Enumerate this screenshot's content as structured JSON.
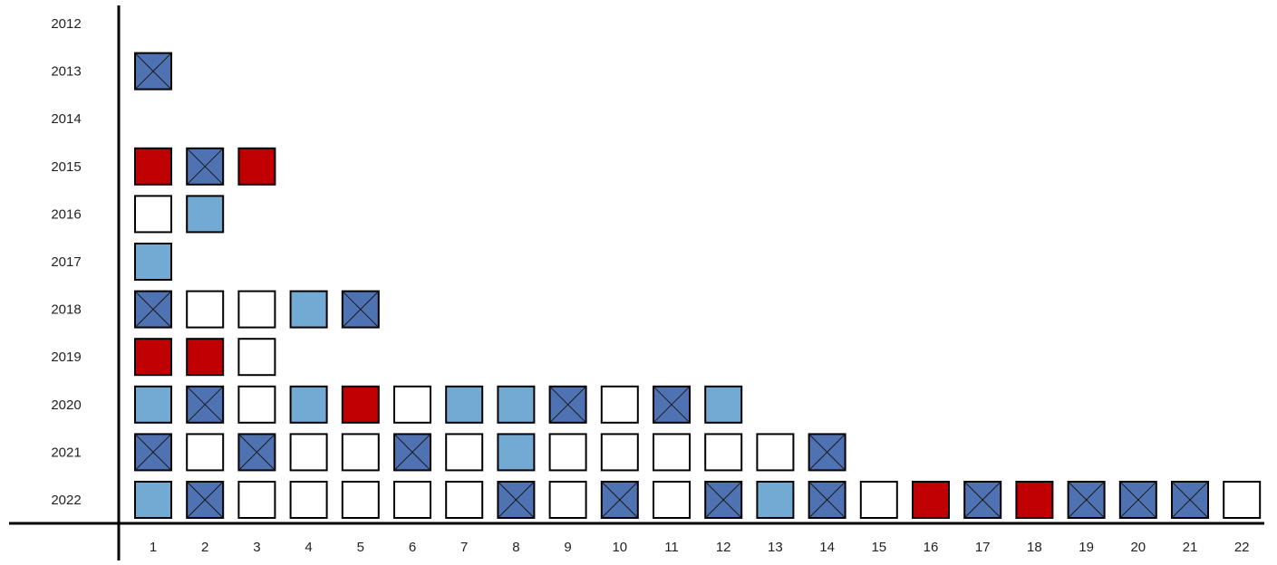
{
  "chart_data": {
    "type": "heatmap",
    "title": "",
    "xlabel": "",
    "ylabel": "",
    "x_categories": [
      "1",
      "2",
      "3",
      "4",
      "5",
      "6",
      "7",
      "8",
      "9",
      "10",
      "11",
      "12",
      "13",
      "14",
      "15",
      "16",
      "17",
      "18",
      "19",
      "20",
      "21",
      "22"
    ],
    "y_categories": [
      "2012",
      "2013",
      "2014",
      "2015",
      "2016",
      "2017",
      "2018",
      "2019",
      "2020",
      "2021",
      "2022"
    ],
    "colors": {
      "red": "#c00000",
      "light_blue": "#72aad4",
      "dark_blue_crossed": "#4f72b3",
      "white": "#ffffff",
      "border": "#000000"
    },
    "rows": [
      {
        "year": "2012",
        "cells": []
      },
      {
        "year": "2013",
        "cells": [
          "dark_blue_crossed"
        ]
      },
      {
        "year": "2014",
        "cells": []
      },
      {
        "year": "2015",
        "cells": [
          "red",
          "dark_blue_crossed",
          "red"
        ]
      },
      {
        "year": "2016",
        "cells": [
          "white",
          "light_blue"
        ]
      },
      {
        "year": "2017",
        "cells": [
          "light_blue"
        ]
      },
      {
        "year": "2018",
        "cells": [
          "dark_blue_crossed",
          "white",
          "white",
          "light_blue",
          "dark_blue_crossed"
        ]
      },
      {
        "year": "2019",
        "cells": [
          "red",
          "red",
          "white"
        ]
      },
      {
        "year": "2020",
        "cells": [
          "light_blue",
          "dark_blue_crossed",
          "white",
          "light_blue",
          "red",
          "white",
          "light_blue",
          "light_blue",
          "dark_blue_crossed",
          "white",
          "dark_blue_crossed",
          "light_blue"
        ]
      },
      {
        "year": "2021",
        "cells": [
          "dark_blue_crossed",
          "white",
          "dark_blue_crossed",
          "white",
          "white",
          "dark_blue_crossed",
          "white",
          "light_blue",
          "white",
          "white",
          "white",
          "white",
          "white",
          "dark_blue_crossed"
        ]
      },
      {
        "year": "2022",
        "cells": [
          "light_blue",
          "dark_blue_crossed",
          "white",
          "white",
          "white",
          "white",
          "white",
          "dark_blue_crossed",
          "white",
          "dark_blue_crossed",
          "white",
          "dark_blue_crossed",
          "light_blue",
          "dark_blue_crossed",
          "white",
          "red",
          "dark_blue_crossed",
          "red",
          "dark_blue_crossed",
          "dark_blue_crossed",
          "dark_blue_crossed",
          "white"
        ]
      }
    ]
  }
}
